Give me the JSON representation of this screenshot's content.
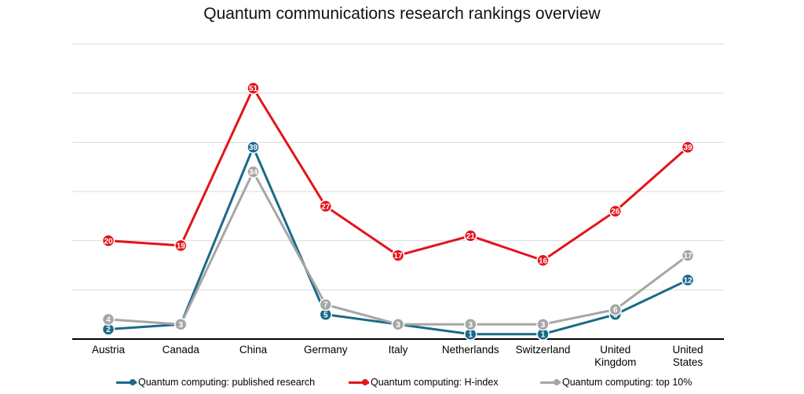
{
  "chart_data": {
    "type": "line",
    "title": "Quantum communications research rankings overview",
    "categories": [
      "Austria",
      "Canada",
      "China",
      "Germany",
      "Italy",
      "Netherlands",
      "Switzerland",
      "United Kingdom",
      "United States"
    ],
    "category_lines": [
      [
        "Austria"
      ],
      [
        "Canada"
      ],
      [
        "China"
      ],
      [
        "Germany"
      ],
      [
        "Italy"
      ],
      [
        "Netherlands"
      ],
      [
        "Switzerland"
      ],
      [
        "United",
        "Kingdom"
      ],
      [
        "United",
        "States"
      ]
    ],
    "series": [
      {
        "name": "Quantum computing: published research",
        "color": "#1a6a8a",
        "values": [
          2,
          3,
          39,
          5,
          3,
          1,
          1,
          5,
          12
        ]
      },
      {
        "name": "Quantum computing: H-index",
        "color": "#e3141b",
        "values": [
          20,
          19,
          51,
          27,
          17,
          21,
          16,
          26,
          39
        ]
      },
      {
        "name": "Quantum computing: top 10%",
        "color": "#a6a6a6",
        "values": [
          4,
          3,
          34,
          7,
          3,
          3,
          3,
          6,
          17
        ]
      }
    ],
    "ylim": [
      0,
      60
    ],
    "y_gridlines": [
      0,
      10,
      20,
      30,
      40,
      50,
      60
    ],
    "grid": "horizontal",
    "legend_position": "bottom",
    "xlabel": "",
    "ylabel": ""
  }
}
